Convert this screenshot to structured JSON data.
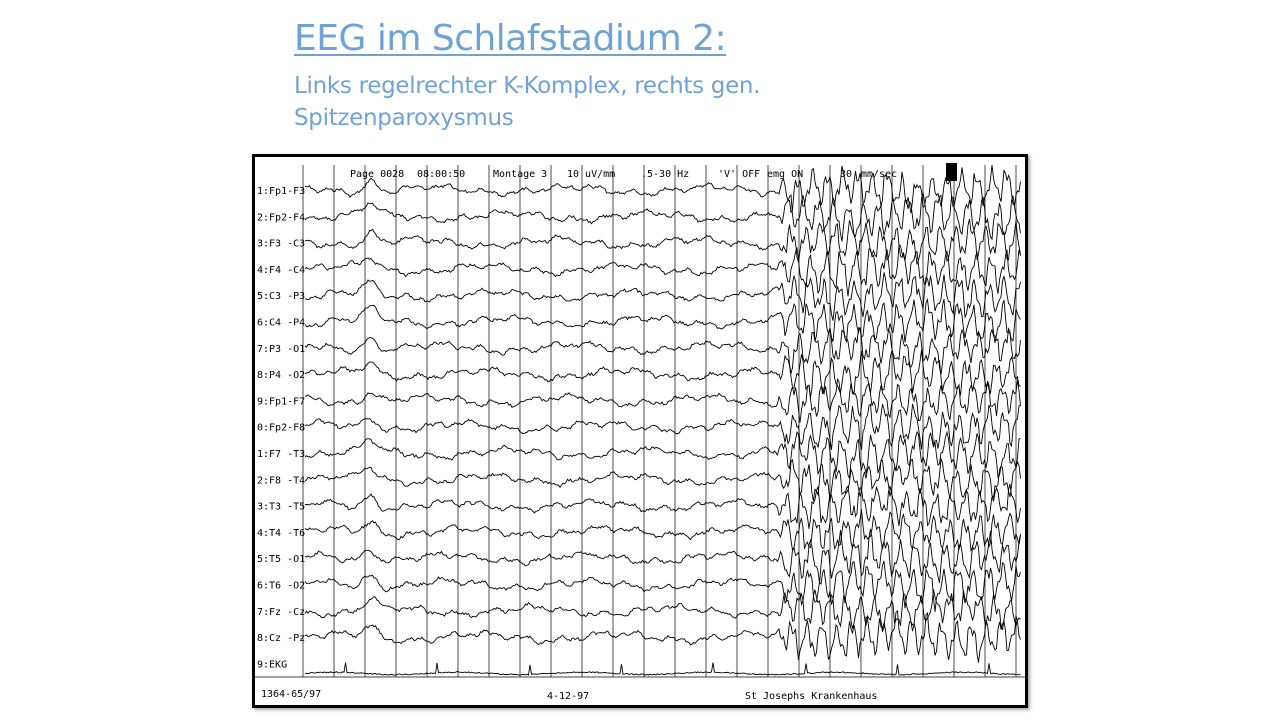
{
  "slide": {
    "title": "EEG im Schlafstadium 2:",
    "subtitle": "Links regelrechter K-Komplex, rechts gen. Spitzenparoxysmus"
  },
  "recording": {
    "header": {
      "page": "Page 0028",
      "time": "08:00:50",
      "montage": "Montage  3",
      "sensitivity": "10 uV/mm",
      "filter": ".5-30 Hz",
      "notch": "'V' OFF",
      "emg": "emg ON",
      "speed_value": "30",
      "speed_unit": "mm/sec"
    },
    "footer": {
      "patient_id": "1364-65/97",
      "date": "4-12-97",
      "hospital": "St Josephs Krankenhaus"
    },
    "channels": [
      "1:Fp1-F3",
      "2:Fp2-F4",
      "3:F3 -C3",
      "4:F4 -C4",
      "5:C3 -P3",
      "6:C4 -P4",
      "7:P3 -O1",
      "8:P4 -O2",
      "9:Fp1-F7",
      "0:Fp2-F8",
      "1:F7 -T3",
      "2:F8 -T4",
      "3:T3 -T5",
      "4:T4 -T6",
      "5:T5 -O1",
      "6:T6 -O2",
      "7:Fz -Cz",
      "8:Cz -Pz",
      "9:EKG"
    ]
  },
  "colors": {
    "title": "#6fa3d6",
    "trace": "#000000"
  }
}
